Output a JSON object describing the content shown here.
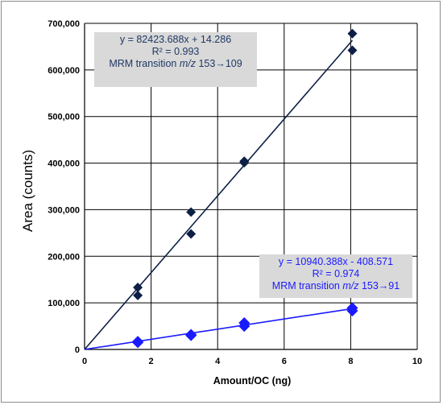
{
  "chart_data": {
    "type": "scatter",
    "xlabel": "Amount/OC (ng)",
    "ylabel": "Area (counts)",
    "xlim": [
      0,
      10
    ],
    "ylim": [
      0,
      700000
    ],
    "x_ticks": [
      0,
      2,
      4,
      6,
      8,
      10
    ],
    "y_ticks": [
      0,
      100000,
      200000,
      300000,
      400000,
      500000,
      600000,
      700000
    ],
    "x_tick_labels": [
      "0",
      "2",
      "4",
      "6",
      "8",
      "10"
    ],
    "y_tick_labels": [
      "0",
      "100,000",
      "200,000",
      "300,000",
      "400,000",
      "500,000",
      "600,000",
      "700,000"
    ],
    "grid": true,
    "series": [
      {
        "color": "#0d1f45",
        "marker": "diamond",
        "points": [
          [
            1.6,
            133000
          ],
          [
            1.6,
            116000
          ],
          [
            3.2,
            295000
          ],
          [
            3.2,
            248000
          ],
          [
            4.8,
            404000
          ],
          [
            4.8,
            401000
          ],
          [
            8.05,
            678000
          ],
          [
            8.05,
            642000
          ]
        ],
        "trendline": {
          "slope": 82423.688,
          "intercept": 14.286
        },
        "annotation": {
          "equation": "y = 82423.688x  + 14.286",
          "r2": "R² = 0.993",
          "transition_prefix": "MRM transition ",
          "transition_mz": "m/z",
          "transition_suffix": " 153→109"
        }
      },
      {
        "color": "#1a1aff",
        "marker": "diamond",
        "points": [
          [
            1.6,
            17000
          ],
          [
            1.6,
            15000
          ],
          [
            3.2,
            32000
          ],
          [
            3.2,
            30000
          ],
          [
            4.8,
            57000
          ],
          [
            4.8,
            50000
          ],
          [
            8.05,
            89000
          ],
          [
            8.05,
            83000
          ]
        ],
        "trendline": {
          "slope": 10940.388,
          "intercept": -408.571
        },
        "annotation": {
          "equation": "y = 10940.388x  - 408.571",
          "r2": "R² = 0.974",
          "transition_prefix": "MRM transition ",
          "transition_mz": "m/z",
          "transition_suffix": " 153→91"
        }
      }
    ]
  }
}
